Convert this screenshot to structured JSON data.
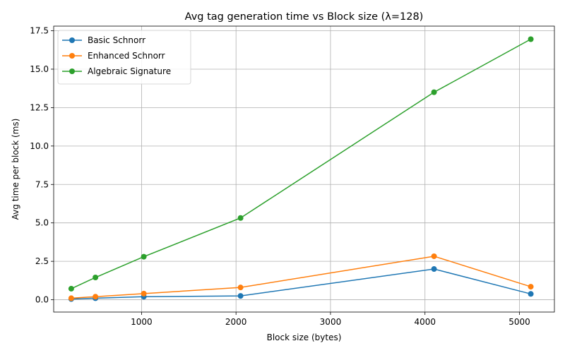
{
  "chart_data": {
    "type": "line",
    "title": "Avg tag generation time vs Block size (λ=128)",
    "xlabel": "Block size (bytes)",
    "ylabel": "Avg time per block (ms)",
    "xlim": [
      70,
      5370
    ],
    "ylim": [
      -0.8,
      17.8
    ],
    "xticks": [
      1000,
      2000,
      3000,
      4000,
      5000
    ],
    "yticks": [
      0.0,
      2.5,
      5.0,
      7.5,
      10.0,
      12.5,
      15.0,
      17.5
    ],
    "ytick_labels": [
      "0.0",
      "2.5",
      "5.0",
      "7.5",
      "10.0",
      "12.5",
      "15.0",
      "17.5"
    ],
    "grid": true,
    "legend_position": "top-left",
    "x": [
      256,
      512,
      1024,
      2048,
      4096,
      5120
    ],
    "series": [
      {
        "name": "Basic Schnorr",
        "color": "#1f77b4",
        "values": [
          0.05,
          0.1,
          0.2,
          0.25,
          2.0,
          0.38
        ]
      },
      {
        "name": "Enhanced Schnorr",
        "color": "#ff7f0e",
        "values": [
          0.1,
          0.2,
          0.4,
          0.8,
          2.83,
          0.85
        ]
      },
      {
        "name": "Algebraic Signature",
        "color": "#2ca02c",
        "values": [
          0.72,
          1.45,
          2.8,
          5.32,
          13.5,
          16.95
        ]
      }
    ]
  }
}
